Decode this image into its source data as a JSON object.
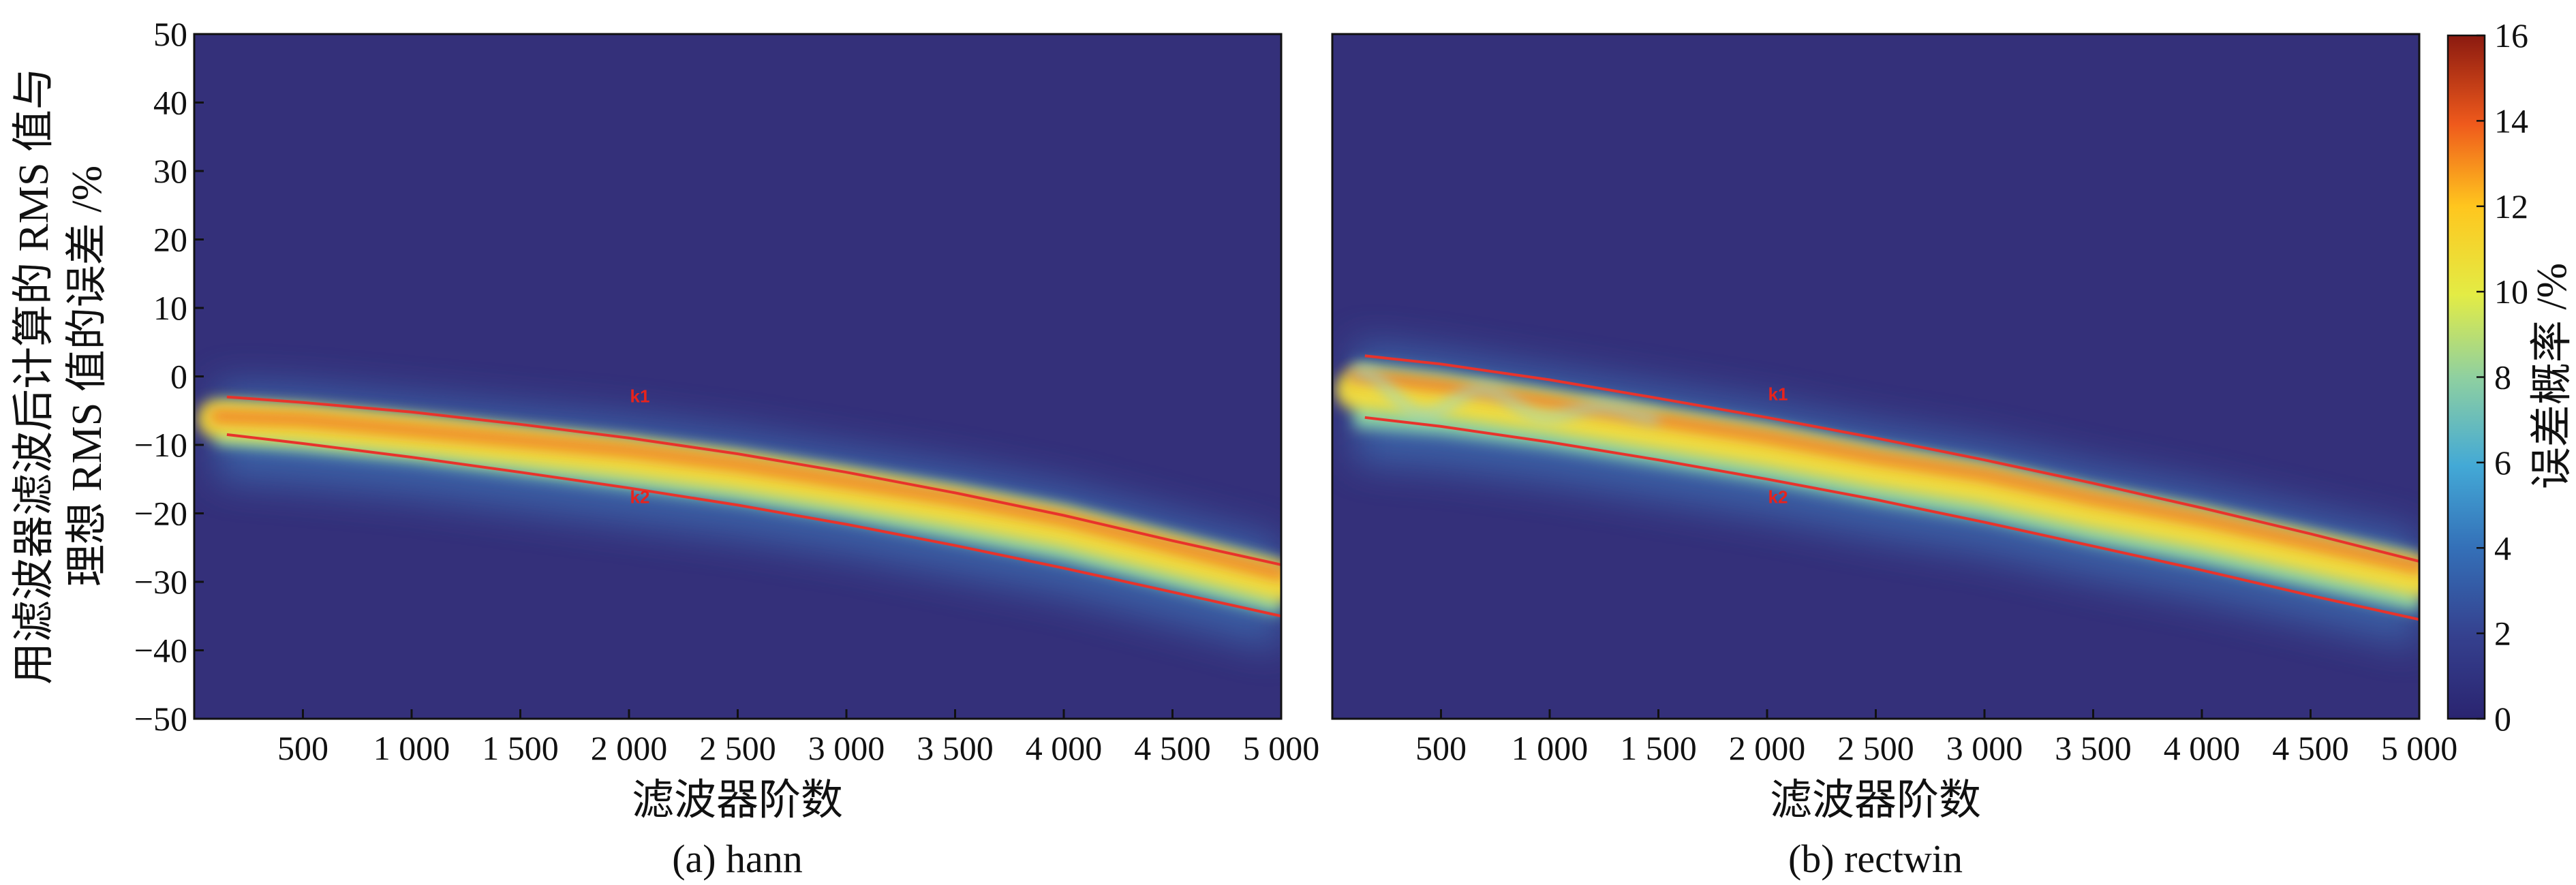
{
  "figure": {
    "y_axis_title_line1": "用滤波器滤波后计算的 RMS 值与",
    "y_axis_title_line2": "理想 RMS 值的误差 /%",
    "colorbar_title": "误差概率 /%"
  },
  "colors": {
    "background": "#34307a",
    "curve": "#e8332b",
    "label": "#e8231c"
  },
  "colormap": "jet",
  "chart_data": [
    {
      "type": "heatmap",
      "title": "",
      "caption": "(a) hann",
      "xlabel": "滤波器阶数",
      "ylabel": "用滤波器滤波后计算的 RMS 值与理想 RMS 值的误差 /%",
      "xlim": [
        0,
        5000
      ],
      "ylim": [
        -50,
        50
      ],
      "x_ticks": [
        500,
        1000,
        1500,
        2000,
        2500,
        3000,
        3500,
        4000,
        4500,
        5000
      ],
      "x_tick_labels": [
        "500",
        "1 000",
        "1 500",
        "2 000",
        "2 500",
        "3 000",
        "3 500",
        "4 000",
        "4 500",
        "5 000"
      ],
      "y_ticks": [
        50,
        40,
        30,
        20,
        10,
        0,
        -10,
        -20,
        -30,
        -40,
        -50
      ],
      "y_tick_labels": [
        "50",
        "40",
        "30",
        "20",
        "10",
        "0",
        "−10",
        "−20",
        "−30",
        "−40",
        "−50"
      ],
      "band": {
        "x": [
          100,
          500,
          1000,
          1500,
          2000,
          2500,
          3000,
          3500,
          4000,
          4500,
          5000
        ],
        "upper": [
          -4,
          -4.5,
          -6,
          -7.5,
          -9,
          -11,
          -13.5,
          -16,
          -19,
          -23,
          -27
        ],
        "lower": [
          -10,
          -11,
          -12.5,
          -14.5,
          -16.5,
          -18.5,
          -21,
          -24,
          -27,
          -31,
          -35
        ]
      },
      "curves": [
        {
          "name": "k1",
          "x": [
            150,
            500,
            1000,
            1500,
            2000,
            2500,
            3000,
            3500,
            4000,
            4500,
            5000
          ],
          "y": [
            -3,
            -3.8,
            -5.2,
            -7,
            -9,
            -11.3,
            -14,
            -17,
            -20.3,
            -24,
            -27.5
          ],
          "label_at": [
            2050,
            -3.8
          ]
        },
        {
          "name": "k2",
          "x": [
            150,
            500,
            1000,
            1500,
            2000,
            2500,
            3000,
            3500,
            4000,
            4500,
            5000
          ],
          "y": [
            -8.5,
            -9.8,
            -11.8,
            -14,
            -16.3,
            -18.8,
            -21.6,
            -24.7,
            -28,
            -31.5,
            -35
          ],
          "label_at": [
            2050,
            -18.5
          ]
        }
      ],
      "colorbar": {
        "range": [
          0,
          16
        ],
        "ticks": [
          0,
          2,
          4,
          6,
          8,
          10,
          12,
          14,
          16
        ],
        "label": "误差概率 /%"
      }
    },
    {
      "type": "heatmap",
      "title": "",
      "caption": "(b) rectwin",
      "xlabel": "滤波器阶数",
      "ylabel": "",
      "xlim": [
        0,
        5000
      ],
      "ylim": [
        -50,
        50
      ],
      "x_ticks": [
        500,
        1000,
        1500,
        2000,
        2500,
        3000,
        3500,
        4000,
        4500,
        5000
      ],
      "x_tick_labels": [
        "500",
        "1 000",
        "1 500",
        "2 000",
        "2 500",
        "3 000",
        "3 500",
        "4 000",
        "4 500",
        "5 000"
      ],
      "band": {
        "x": [
          100,
          500,
          1000,
          1500,
          2000,
          2500,
          3000,
          3500,
          4000,
          4500,
          5000
        ],
        "upper": [
          2,
          0.5,
          -2,
          -4.5,
          -7,
          -10,
          -12.5,
          -16,
          -19,
          -22.5,
          -26
        ],
        "lower": [
          -7.5,
          -8.5,
          -10.5,
          -13,
          -15.5,
          -18.5,
          -21,
          -24.5,
          -27.5,
          -31,
          -34.5
        ]
      },
      "curves": [
        {
          "name": "k1",
          "x": [
            150,
            500,
            1000,
            1500,
            2000,
            2500,
            3000,
            3500,
            4000,
            4500,
            5000
          ],
          "y": [
            3,
            1.8,
            -0.5,
            -3.2,
            -6,
            -9,
            -12.2,
            -15.6,
            -19.2,
            -23,
            -27
          ],
          "label_at": [
            2050,
            -3.5
          ]
        },
        {
          "name": "k2",
          "x": [
            150,
            500,
            1000,
            1500,
            2000,
            2500,
            3000,
            3500,
            4000,
            4500,
            5000
          ],
          "y": [
            -6,
            -7.3,
            -9.6,
            -12.2,
            -15,
            -18,
            -21.3,
            -24.8,
            -28.3,
            -32,
            -35.5
          ],
          "label_at": [
            2050,
            -18.5
          ]
        }
      ],
      "colorbar": {
        "range": [
          0,
          16
        ],
        "ticks": [
          0,
          2,
          4,
          6,
          8,
          10,
          12,
          14,
          16
        ],
        "label": "误差概率 /%"
      }
    }
  ]
}
